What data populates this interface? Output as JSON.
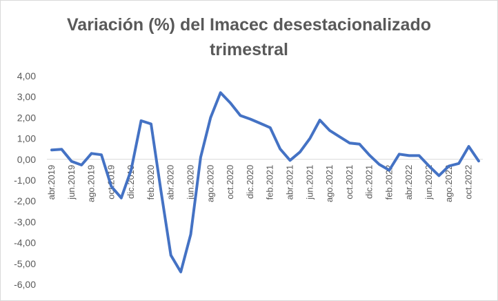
{
  "chart_data": {
    "type": "line",
    "title_line1": "Variación (%) del Imacec desestacionalizado",
    "title_line2": "trimestral",
    "ylim": [
      -6,
      4
    ],
    "yticks": [
      {
        "value": 4,
        "label": "4,00"
      },
      {
        "value": 3,
        "label": "3,00"
      },
      {
        "value": 2,
        "label": "2,00"
      },
      {
        "value": 1,
        "label": "1,00"
      },
      {
        "value": 0,
        "label": "0,00"
      },
      {
        "value": -1,
        "label": "-1,00"
      },
      {
        "value": -2,
        "label": "-2,00"
      },
      {
        "value": -3,
        "label": "-3,00"
      },
      {
        "value": -4,
        "label": "-4,00"
      },
      {
        "value": -5,
        "label": "-5,00"
      },
      {
        "value": -6,
        "label": "-6,00"
      }
    ],
    "grid": false,
    "line_color": "#4472c4",
    "x": [
      "abr.2019",
      "may.2019",
      "jun.2019",
      "jul.2019",
      "ago.2019",
      "sep.2019",
      "oct.2019",
      "nov.2019",
      "dic.2019",
      "ene.2020",
      "feb.2020",
      "mar.2020",
      "abr.2020",
      "may.2020",
      "jun.2020",
      "jul.2020",
      "ago.2020",
      "sep.2020",
      "oct.2020",
      "nov.2020",
      "dic.2020",
      "ene.2021",
      "feb.2021",
      "mar.2021",
      "abr.2021",
      "may.2021",
      "jun.2021",
      "jul.2021",
      "ago.2021",
      "sep.2021",
      "oct.2021",
      "nov.2021",
      "dic.2021",
      "ene.2022",
      "feb.2022",
      "mar.2022",
      "abr.2022",
      "may.2022",
      "jun.2022",
      "jul.2022",
      "ago.2022",
      "sep.2022",
      "oct.2022",
      "nov.2022"
    ],
    "xtick_labels": [
      {
        "index": 0,
        "label": "abr.2019"
      },
      {
        "index": 2,
        "label": "jun.2019"
      },
      {
        "index": 4,
        "label": "ago.2019"
      },
      {
        "index": 6,
        "label": "oct.2019"
      },
      {
        "index": 8,
        "label": "dic.2019"
      },
      {
        "index": 10,
        "label": "feb.2020"
      },
      {
        "index": 12,
        "label": "abr.2020"
      },
      {
        "index": 14,
        "label": "jun.2020"
      },
      {
        "index": 16,
        "label": "ago.2020"
      },
      {
        "index": 18,
        "label": "oct.2020"
      },
      {
        "index": 20,
        "label": "dic.2020"
      },
      {
        "index": 22,
        "label": "feb.2021"
      },
      {
        "index": 24,
        "label": "abr.2021"
      },
      {
        "index": 26,
        "label": "jun.2021"
      },
      {
        "index": 28,
        "label": "ago.2021"
      },
      {
        "index": 30,
        "label": "oct.2021"
      },
      {
        "index": 32,
        "label": "dic.2021"
      },
      {
        "index": 34,
        "label": "feb.2022"
      },
      {
        "index": 36,
        "label": "abr.2022"
      },
      {
        "index": 38,
        "label": "jun.2022"
      },
      {
        "index": 40,
        "label": "ago.2022"
      },
      {
        "index": 42,
        "label": "oct.2022"
      }
    ],
    "series": [
      {
        "values": [
          0.45,
          0.48,
          -0.1,
          -0.27,
          0.28,
          0.22,
          -1.3,
          -1.85,
          -0.5,
          1.85,
          1.7,
          -1.5,
          -4.6,
          -5.4,
          -3.6,
          0.1,
          2.0,
          3.2,
          2.7,
          2.1,
          1.93,
          1.73,
          1.52,
          0.5,
          -0.05,
          0.35,
          1.0,
          1.88,
          1.38,
          1.08,
          0.78,
          0.73,
          0.2,
          -0.25,
          -0.52,
          0.25,
          0.18,
          0.18,
          -0.32,
          -0.78,
          -0.32,
          -0.2,
          0.62,
          -0.08
        ]
      }
    ]
  }
}
